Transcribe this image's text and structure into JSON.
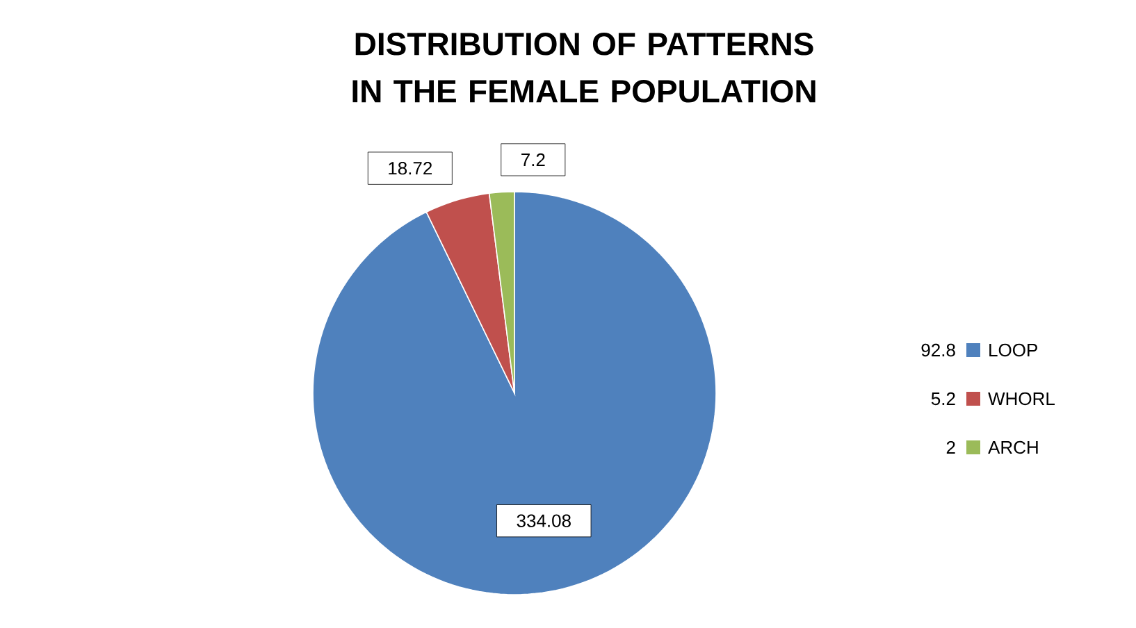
{
  "chart_data": {
    "type": "pie",
    "title": "DISTRIBUTION OF PATTERNS IN THE FEMALE POPULATION",
    "categories": [
      "LOOP",
      "WHORL",
      "ARCH"
    ],
    "values": [
      334.08,
      18.72,
      7.2
    ],
    "colors": [
      "#4f81bd",
      "#c0504d",
      "#9bbb59"
    ],
    "data_labels": true,
    "legend": "right",
    "annotations": [
      "92.8",
      "5.2",
      "2"
    ]
  }
}
